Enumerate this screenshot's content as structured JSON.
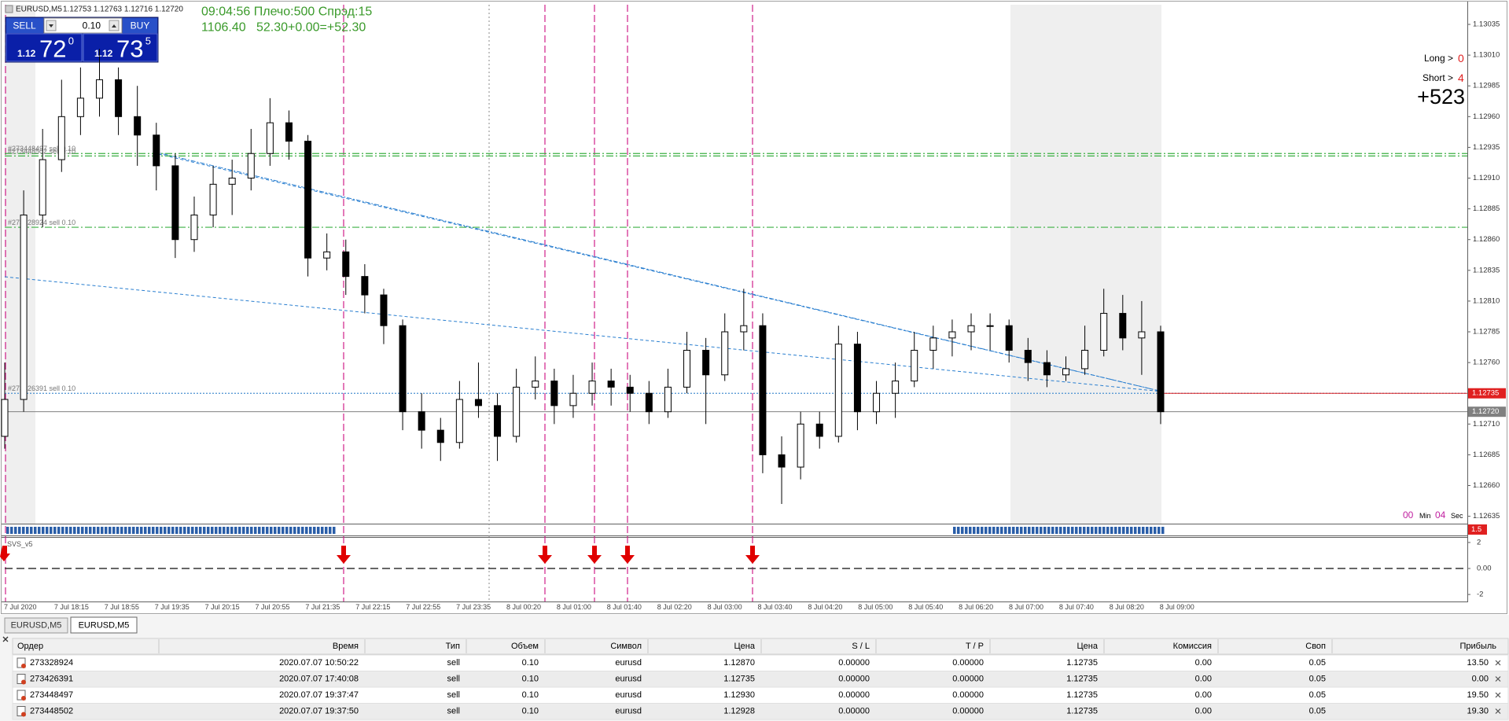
{
  "window": {
    "symbol": "EURUSD,M5",
    "ohlc": "1.12753 1.12763 1.12716 1.12720"
  },
  "trade_panel": {
    "sell": "SELL",
    "buy": "BUY",
    "lot": "0.10",
    "bid": {
      "big": "1.12",
      "main": "72",
      "sup": "0"
    },
    "ask": {
      "big": "1.12",
      "main": "73",
      "sup": "5"
    }
  },
  "info": {
    "line1": "09:04:56 Плечо:500 Спрэд:15",
    "line2": "1106.40   52.30+0.00=+52.30"
  },
  "signals": {
    "long_label": "Long >",
    "long": "0",
    "short_label": "Short >",
    "short": "4",
    "total": "+523"
  },
  "timer": {
    "min": "00",
    "min_label": "Min",
    "sec": "04",
    "sec_label": "Sec"
  },
  "chart": {
    "type": "candlestick",
    "ylim": [
      1.12629,
      1.13051
    ],
    "yticks": [
      1.13035,
      {
        "value": 1.1301,
        "label": "1.13010"
      },
      1.12985,
      {
        "value": 1.1296,
        "label": "1.12960"
      },
      1.12935,
      {
        "value": 1.1291,
        "label": "1.12910"
      },
      1.12885,
      {
        "value": 1.1286,
        "label": "1.12860"
      },
      1.12835,
      {
        "value": 1.1281,
        "label": "1.12810"
      },
      1.12785,
      {
        "value": 1.1276,
        "label": "1.12760"
      },
      {
        "value": 1.1271,
        "label": "1.12710"
      },
      1.12685,
      {
        "value": 1.1266,
        "label": "1.12660"
      },
      1.12635
    ],
    "candles": [
      [
        1.127,
        1.1276,
        1.1269,
        1.1273
      ],
      [
        1.1273,
        1.129,
        1.1272,
        1.1288
      ],
      [
        1.1288,
        1.1295,
        1.1287,
        1.12925
      ],
      [
        1.12925,
        1.1299,
        1.12915,
        1.1296
      ],
      [
        1.1296,
        1.13,
        1.12945,
        1.12975
      ],
      [
        1.12975,
        1.13015,
        1.1296,
        1.1299
      ],
      [
        1.1299,
        1.13,
        1.12945,
        1.1296
      ],
      [
        1.1296,
        1.12985,
        1.1292,
        1.12945
      ],
      [
        1.12945,
        1.12955,
        1.129,
        1.1292
      ],
      [
        1.1292,
        1.1293,
        1.12845,
        1.1286
      ],
      [
        1.1286,
        1.12895,
        1.1285,
        1.1288
      ],
      [
        1.1288,
        1.1292,
        1.1287,
        1.12905
      ],
      [
        1.12905,
        1.12925,
        1.1288,
        1.1291
      ],
      [
        1.1291,
        1.1295,
        1.129,
        1.1293
      ],
      [
        1.1293,
        1.12975,
        1.1292,
        1.12955
      ],
      [
        1.12955,
        1.12965,
        1.12925,
        1.1294
      ],
      [
        1.1294,
        1.12945,
        1.1283,
        1.12845
      ],
      [
        1.12845,
        1.12865,
        1.12835,
        1.1285
      ],
      [
        1.1285,
        1.1286,
        1.12815,
        1.1283
      ],
      [
        1.1283,
        1.1284,
        1.128,
        1.12815
      ],
      [
        1.12815,
        1.1282,
        1.12775,
        1.1279
      ],
      [
        1.1279,
        1.12795,
        1.12705,
        1.1272
      ],
      [
        1.1272,
        1.12735,
        1.1269,
        1.12705
      ],
      [
        1.12705,
        1.12715,
        1.1268,
        1.12695
      ],
      [
        1.12695,
        1.12745,
        1.1269,
        1.1273
      ],
      [
        1.1273,
        1.1276,
        1.12715,
        1.12725
      ],
      [
        1.12725,
        1.12735,
        1.1268,
        1.127
      ],
      [
        1.127,
        1.12755,
        1.12695,
        1.1274
      ],
      [
        1.1274,
        1.12765,
        1.1273,
        1.12745
      ],
      [
        1.12745,
        1.12755,
        1.1271,
        1.12725
      ],
      [
        1.12725,
        1.1275,
        1.12715,
        1.12735
      ],
      [
        1.12735,
        1.1276,
        1.12725,
        1.12745
      ],
      [
        1.12745,
        1.12755,
        1.12725,
        1.1274
      ],
      [
        1.1274,
        1.1275,
        1.1272,
        1.12735
      ],
      [
        1.12735,
        1.12745,
        1.1271,
        1.1272
      ],
      [
        1.1272,
        1.12755,
        1.12715,
        1.1274
      ],
      [
        1.1274,
        1.12785,
        1.12735,
        1.1277
      ],
      [
        1.1277,
        1.1278,
        1.1271,
        1.1275
      ],
      [
        1.1275,
        1.128,
        1.12745,
        1.12785
      ],
      [
        1.12785,
        1.1282,
        1.1277,
        1.1279
      ],
      [
        1.1279,
        1.128,
        1.1267,
        1.12685
      ],
      [
        1.12685,
        1.127,
        1.12645,
        1.12675
      ],
      [
        1.12675,
        1.1272,
        1.12665,
        1.1271
      ],
      [
        1.1271,
        1.1272,
        1.1269,
        1.127
      ],
      [
        1.127,
        1.1279,
        1.12695,
        1.12775
      ],
      [
        1.12775,
        1.12785,
        1.12705,
        1.1272
      ],
      [
        1.1272,
        1.12745,
        1.1271,
        1.12735
      ],
      [
        1.12735,
        1.1276,
        1.12715,
        1.12745
      ],
      [
        1.12745,
        1.12785,
        1.1274,
        1.1277
      ],
      [
        1.1277,
        1.1279,
        1.12755,
        1.1278
      ],
      [
        1.1278,
        1.12795,
        1.12765,
        1.12785
      ],
      [
        1.12785,
        1.128,
        1.1277,
        1.1279
      ],
      [
        1.1279,
        1.128,
        1.1277,
        1.1279
      ],
      [
        1.1279,
        1.12795,
        1.1276,
        1.1277
      ],
      [
        1.1277,
        1.1278,
        1.12745,
        1.1276
      ],
      [
        1.1276,
        1.1277,
        1.1274,
        1.1275
      ],
      [
        1.1275,
        1.12765,
        1.12745,
        1.12755
      ],
      [
        1.12755,
        1.1279,
        1.1275,
        1.1277
      ],
      [
        1.1277,
        1.1282,
        1.12765,
        1.128
      ],
      [
        1.128,
        1.12815,
        1.1277,
        1.1278
      ],
      [
        1.1278,
        1.1281,
        1.1275,
        1.12785
      ],
      [
        1.12785,
        1.1279,
        1.1271,
        1.1272
      ]
    ],
    "order_lines": [
      {
        "label": "#273448497 sell 0.10",
        "price": 1.1293,
        "color": "#3cb043"
      },
      {
        "label": "#273448502 sell 0.10",
        "price": 1.12928,
        "color": "#3cb043"
      },
      {
        "label": "#273328924 sell 0.10",
        "price": 1.1287,
        "color": "#3cb043"
      },
      {
        "label": "#273426391 sell 0.10",
        "price": 1.12735,
        "color": "#4a90d0"
      }
    ],
    "price_tags": [
      {
        "value": 1.12735,
        "label": "1.12735",
        "color": "#e02020"
      },
      {
        "value": 1.1272,
        "label": "1.12720",
        "color": "#808080"
      }
    ],
    "xlabels": [
      "7 Jul 2020",
      "7 Jul 18:15",
      "7 Jul 18:55",
      "7 Jul 19:35",
      "7 Jul 20:15",
      "7 Jul 20:55",
      "7 Jul 21:35",
      "7 Jul 22:15",
      "7 Jul 22:55",
      "7 Jul 23:35",
      "8 Jul 00:20",
      "8 Jul 01:00",
      "8 Jul 01:40",
      "8 Jul 02:20",
      "8 Jul 03:00",
      "8 Jul 03:40",
      "8 Jul 04:20",
      "8 Jul 05:00",
      "8 Jul 05:40",
      "8 Jul 06:20",
      "8 Jul 07:00",
      "8 Jul 07:40",
      "8 Jul 08:20",
      "8 Jul 09:00"
    ]
  },
  "indicator1": {
    "label": "1.5"
  },
  "indicator2": {
    "name": "SVS_v5",
    "ylim": [
      -2.54,
      2.36
    ],
    "yticks": [
      2,
      {
        "value": 0,
        "label": "0.00"
      },
      -2
    ]
  },
  "tabs": [
    "EURUSD,M5",
    "EURUSD,M5"
  ],
  "table": {
    "columns": [
      "Ордер",
      "Время",
      "Тип",
      "Объем",
      "Символ",
      "Цена",
      "S / L",
      "T / P",
      "Цена",
      "Комиссия",
      "Своп",
      "Прибыль"
    ],
    "rows": [
      [
        "273328924",
        "2020.07.07 10:50:22",
        "sell",
        "0.10",
        "eurusd",
        "1.12870",
        "0.00000",
        "0.00000",
        "1.12735",
        "0.00",
        "0.05",
        "13.50"
      ],
      [
        "273426391",
        "2020.07.07 17:40:08",
        "sell",
        "0.10",
        "eurusd",
        "1.12735",
        "0.00000",
        "0.00000",
        "1.12735",
        "0.00",
        "0.05",
        "0.00"
      ],
      [
        "273448497",
        "2020.07.07 19:37:47",
        "sell",
        "0.10",
        "eurusd",
        "1.12930",
        "0.00000",
        "0.00000",
        "1.12735",
        "0.00",
        "0.05",
        "19.50"
      ],
      [
        "273448502",
        "2020.07.07 19:37:50",
        "sell",
        "0.10",
        "eurusd",
        "1.12928",
        "0.00000",
        "0.00000",
        "1.12735",
        "0.00",
        "0.05",
        "19.30"
      ]
    ]
  }
}
